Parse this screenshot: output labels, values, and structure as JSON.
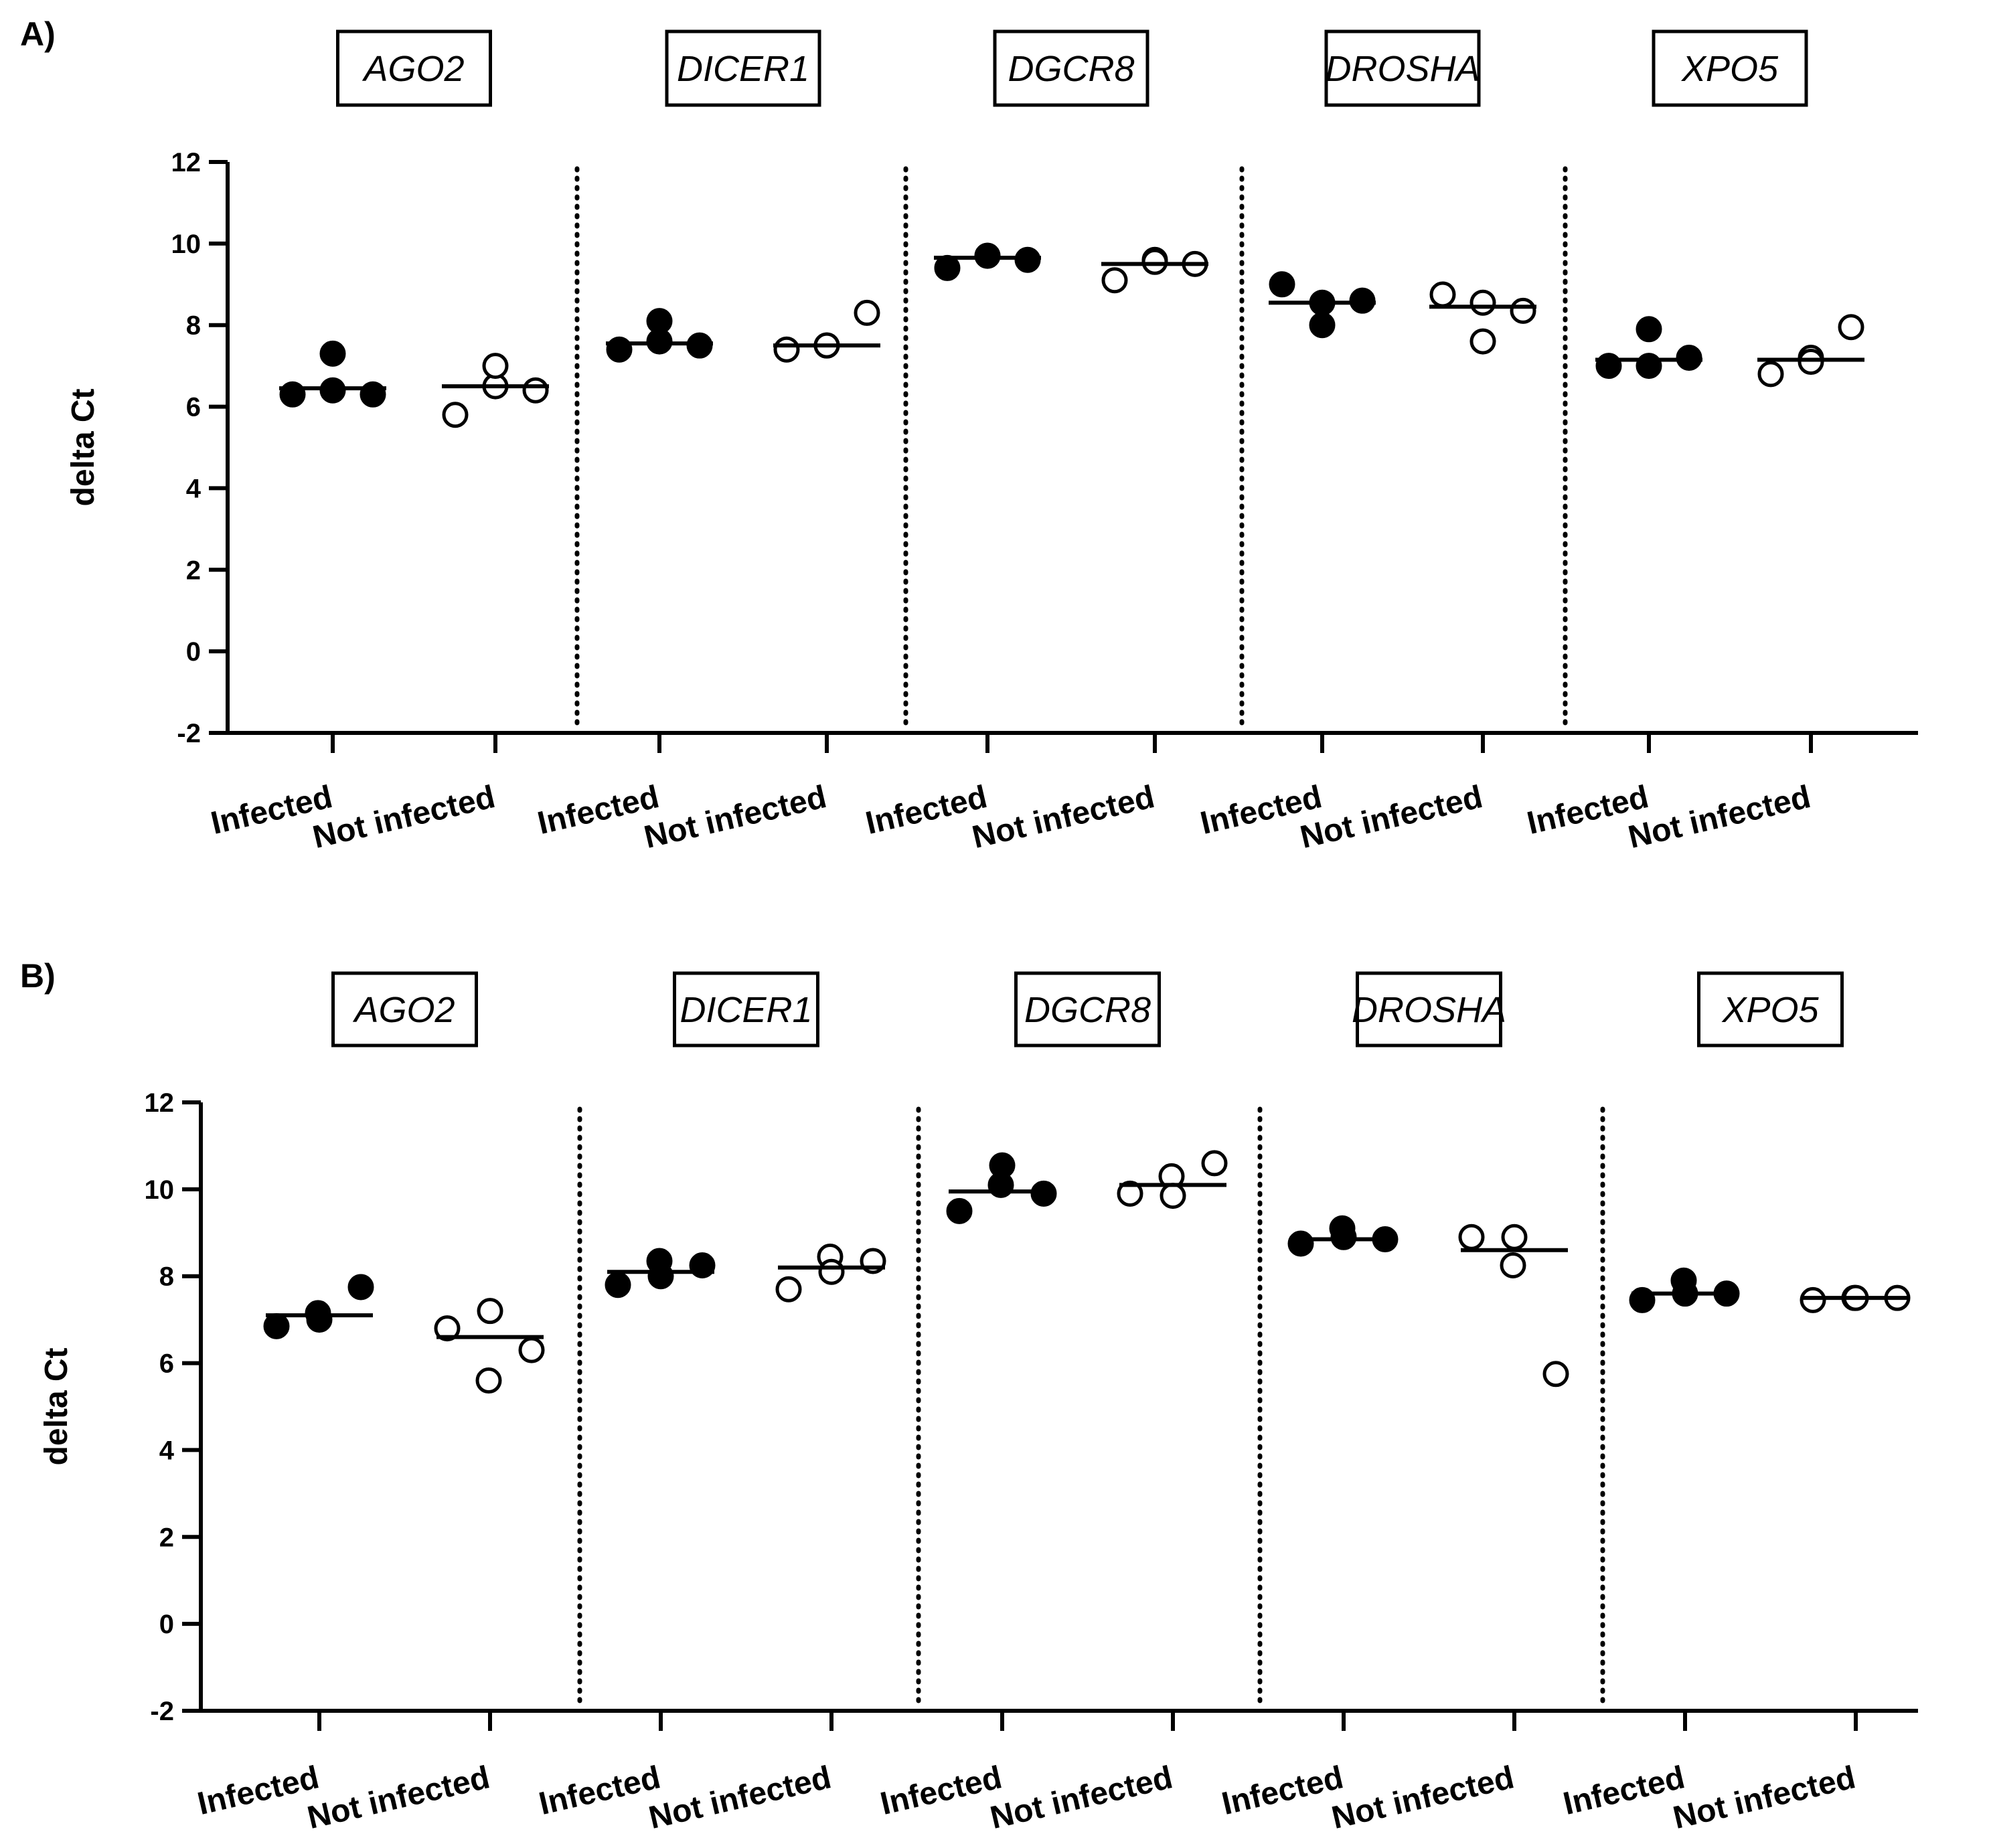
{
  "chart_data": [
    {
      "type": "scatter",
      "panel_label": "A)",
      "ylabel": "delta Ct",
      "ylim": [
        -2,
        12
      ],
      "yticks": [
        -2,
        0,
        2,
        4,
        6,
        8,
        10,
        12
      ],
      "grid": false,
      "categories": [
        "Infected",
        "Not infected"
      ],
      "genes": [
        {
          "name": "AGO2",
          "groups": [
            {
              "label": "Infected",
              "fill": "#000000",
              "points": [
                6.3,
                6.4,
                6.3,
                7.3
              ],
              "mean": 6.45
            },
            {
              "label": "Not infected",
              "fill": "#ffffff",
              "points": [
                5.8,
                6.5,
                6.4,
                7.0
              ],
              "mean": 6.5
            }
          ]
        },
        {
          "name": "DICER1",
          "groups": [
            {
              "label": "Infected",
              "fill": "#000000",
              "points": [
                7.4,
                7.6,
                7.5,
                8.1
              ],
              "mean": 7.55
            },
            {
              "label": "Not infected",
              "fill": "#ffffff",
              "points": [
                7.4,
                7.5,
                8.3,
                7.5
              ],
              "mean": 7.5
            }
          ]
        },
        {
          "name": "DGCR8",
          "groups": [
            {
              "label": "Infected",
              "fill": "#000000",
              "points": [
                9.4,
                9.7,
                9.6,
                9.7
              ],
              "mean": 9.65
            },
            {
              "label": "Not infected",
              "fill": "#ffffff",
              "points": [
                9.1,
                9.6,
                9.5,
                9.55
              ],
              "mean": 9.5
            }
          ]
        },
        {
          "name": "DROSHA",
          "groups": [
            {
              "label": "Infected",
              "fill": "#000000",
              "points": [
                9.0,
                8.0,
                8.6,
                8.55
              ],
              "mean": 8.55
            },
            {
              "label": "Not infected",
              "fill": "#ffffff",
              "points": [
                8.75,
                7.6,
                8.35,
                8.55
              ],
              "mean": 8.45
            }
          ]
        },
        {
          "name": "XPO5",
          "groups": [
            {
              "label": "Infected",
              "fill": "#000000",
              "points": [
                7.0,
                7.9,
                7.2,
                7.0
              ],
              "mean": 7.15
            },
            {
              "label": "Not infected",
              "fill": "#ffffff",
              "points": [
                6.8,
                7.2,
                7.95,
                7.1
              ],
              "mean": 7.15
            }
          ]
        }
      ]
    },
    {
      "type": "scatter",
      "panel_label": "B)",
      "ylabel": "delta Ct",
      "ylim": [
        -2,
        12
      ],
      "yticks": [
        -2,
        0,
        2,
        4,
        6,
        8,
        10,
        12
      ],
      "grid": false,
      "categories": [
        "Infected",
        "Not infected"
      ],
      "genes": [
        {
          "name": "AGO2",
          "groups": [
            {
              "label": "Infected",
              "fill": "#000000",
              "points": [
                6.85,
                7.15,
                7.75,
                7.0
              ],
              "mean": 7.1
            },
            {
              "label": "Not infected",
              "fill": "#ffffff",
              "points": [
                6.8,
                5.6,
                6.3,
                7.2
              ],
              "mean": 6.6
            }
          ]
        },
        {
          "name": "DICER1",
          "groups": [
            {
              "label": "Infected",
              "fill": "#000000",
              "points": [
                7.8,
                8.35,
                8.25,
                8.0
              ],
              "mean": 8.1
            },
            {
              "label": "Not infected",
              "fill": "#ffffff",
              "points": [
                7.7,
                8.45,
                8.35,
                8.1
              ],
              "mean": 8.2
            }
          ]
        },
        {
          "name": "DGCR8",
          "groups": [
            {
              "label": "Infected",
              "fill": "#000000",
              "points": [
                9.5,
                10.1,
                9.9,
                10.55
              ],
              "mean": 9.95
            },
            {
              "label": "Not infected",
              "fill": "#ffffff",
              "points": [
                9.9,
                10.3,
                10.6,
                9.85
              ],
              "mean": 10.1
            }
          ]
        },
        {
          "name": "DROSHA",
          "groups": [
            {
              "label": "Infected",
              "fill": "#000000",
              "points": [
                8.75,
                9.1,
                8.85,
                8.9
              ],
              "mean": 8.85
            },
            {
              "label": "Not infected",
              "fill": "#ffffff",
              "points": [
                8.9,
                8.25,
                5.75,
                8.9
              ],
              "mean": 8.6
            }
          ]
        },
        {
          "name": "XPO5",
          "groups": [
            {
              "label": "Infected",
              "fill": "#000000",
              "points": [
                7.45,
                7.9,
                7.6,
                7.6
              ],
              "mean": 7.6
            },
            {
              "label": "Not infected",
              "fill": "#ffffff",
              "points": [
                7.45,
                7.5,
                7.5,
                7.5
              ],
              "mean": 7.5
            }
          ]
        }
      ]
    }
  ]
}
